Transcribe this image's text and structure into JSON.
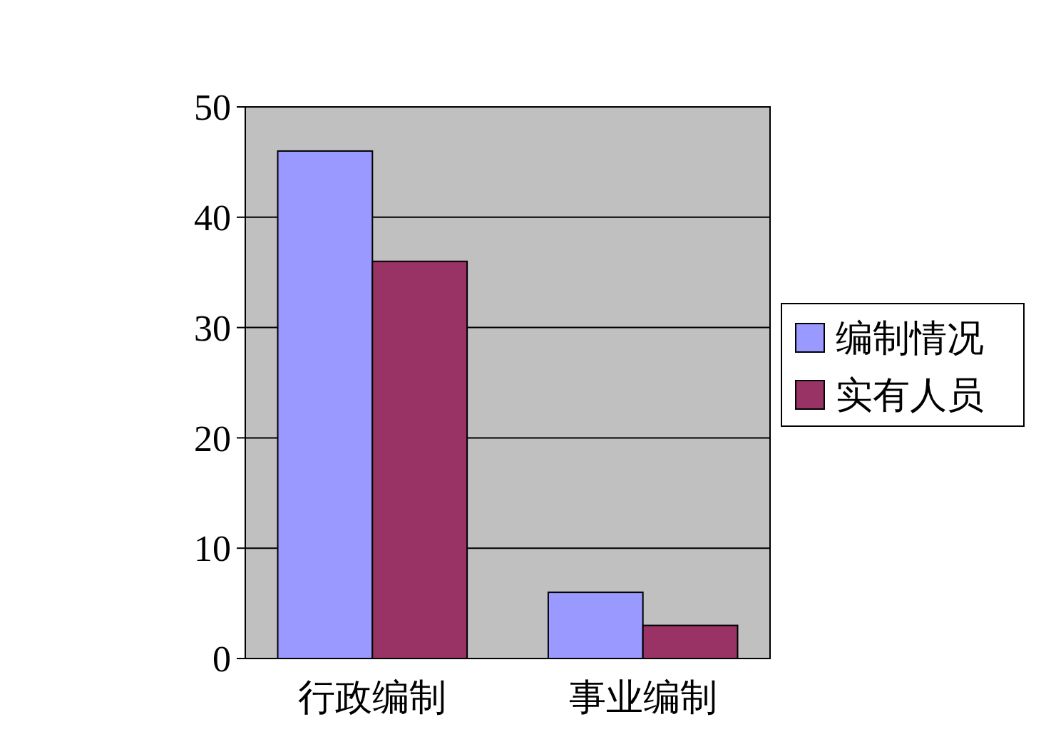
{
  "chart_data": {
    "type": "bar",
    "categories": [
      "行政编制",
      "事业编制"
    ],
    "series": [
      {
        "name": "编制情况",
        "color": "#9999ff",
        "values": [
          46,
          6
        ]
      },
      {
        "name": "实有人员",
        "color": "#993366",
        "values": [
          36,
          3
        ]
      }
    ],
    "ylim": [
      0,
      50
    ],
    "yticks": [
      0,
      10,
      20,
      30,
      40,
      50
    ],
    "grid": "y",
    "legend": "right"
  }
}
